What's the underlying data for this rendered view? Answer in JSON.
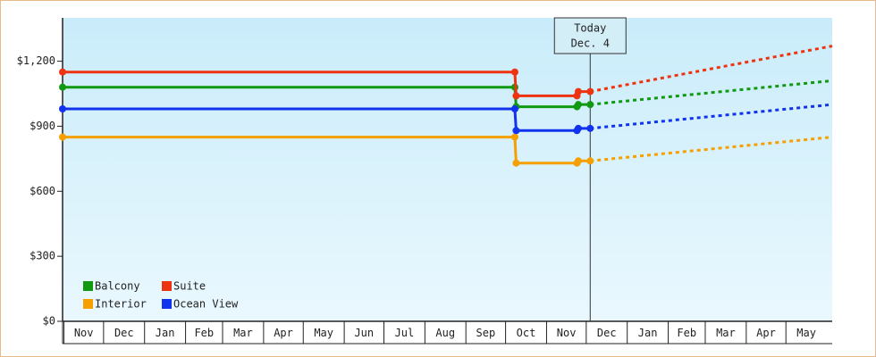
{
  "chart_data": {
    "type": "line",
    "title": "",
    "xlabel": "",
    "ylabel": "",
    "ylim": [
      0,
      1400
    ],
    "y_ticks": [
      {
        "value": 0,
        "label": "$0"
      },
      {
        "value": 300,
        "label": "$300"
      },
      {
        "value": 600,
        "label": "$600"
      },
      {
        "value": 900,
        "label": "$900"
      },
      {
        "value": 1200,
        "label": "$1,200"
      }
    ],
    "x_domain": [
      "2021-10-31",
      "2022-06-05"
    ],
    "months": [
      {
        "label": "Nov",
        "start": "2020-11-01",
        "end": "2020-12-01"
      },
      {
        "label": "Dec",
        "start": "2020-12-01",
        "end": "2021-01-01"
      },
      {
        "label": "Jan",
        "start": "2021-01-01",
        "end": "2021-02-01"
      },
      {
        "label": "Feb",
        "start": "2021-02-01",
        "end": "2021-03-01"
      },
      {
        "label": "Mar",
        "start": "2021-03-01",
        "end": "2021-04-01"
      },
      {
        "label": "Apr",
        "start": "2021-04-01",
        "end": "2021-05-01"
      },
      {
        "label": "May",
        "start": "2021-05-01",
        "end": "2021-06-01"
      },
      {
        "label": "Jun",
        "start": "2021-06-01",
        "end": "2021-07-01"
      },
      {
        "label": "Jul",
        "start": "2021-07-01",
        "end": "2021-08-01"
      },
      {
        "label": "Aug",
        "start": "2021-08-01",
        "end": "2021-09-01"
      },
      {
        "label": "Sep",
        "start": "2021-09-01",
        "end": "2021-10-01"
      },
      {
        "label": "Oct",
        "start": "2021-10-01",
        "end": "2021-11-01"
      },
      {
        "label": "Nov",
        "start": "2021-11-01",
        "end": "2021-12-01"
      },
      {
        "label": "Dec",
        "start": "2021-12-01",
        "end": "2022-01-01"
      },
      {
        "label": "Jan",
        "start": "2022-01-01",
        "end": "2022-02-01"
      },
      {
        "label": "Feb",
        "start": "2022-02-01",
        "end": "2022-03-01"
      },
      {
        "label": "Mar",
        "start": "2022-03-01",
        "end": "2022-04-01"
      },
      {
        "label": "Apr",
        "start": "2022-04-01",
        "end": "2022-05-01"
      },
      {
        "label": "May",
        "start": "2022-05-01",
        "end": "2022-06-01"
      }
    ],
    "today": {
      "line1": "Today",
      "line2": "Dec. 4",
      "date": "2021-12-04"
    },
    "legend": {
      "placement": "bottom-left"
    },
    "series": [
      {
        "name": "Balcony",
        "color": "#119911",
        "points": [
          {
            "date": "2020-10-31",
            "value": 1080
          },
          {
            "date": "2021-10-08",
            "value": 1080
          },
          {
            "date": "2021-10-09",
            "value": 990
          },
          {
            "date": "2021-11-24",
            "value": 990
          },
          {
            "date": "2021-11-25",
            "value": 1000
          },
          {
            "date": "2021-12-04",
            "value": 1000
          }
        ],
        "forecast": [
          {
            "date": "2021-12-04",
            "value": 1000
          },
          {
            "date": "2022-06-05",
            "value": 1110
          }
        ]
      },
      {
        "name": "Suite",
        "color": "#ee3311",
        "points": [
          {
            "date": "2020-10-31",
            "value": 1150
          },
          {
            "date": "2021-10-08",
            "value": 1150
          },
          {
            "date": "2021-10-09",
            "value": 1040
          },
          {
            "date": "2021-11-24",
            "value": 1040
          },
          {
            "date": "2021-11-25",
            "value": 1060
          },
          {
            "date": "2021-12-04",
            "value": 1060
          }
        ],
        "forecast": [
          {
            "date": "2021-12-04",
            "value": 1060
          },
          {
            "date": "2022-06-05",
            "value": 1270
          }
        ]
      },
      {
        "name": "Interior",
        "color": "#f5a000",
        "points": [
          {
            "date": "2020-10-31",
            "value": 850
          },
          {
            "date": "2021-10-08",
            "value": 850
          },
          {
            "date": "2021-10-09",
            "value": 730
          },
          {
            "date": "2021-11-24",
            "value": 730
          },
          {
            "date": "2021-11-25",
            "value": 740
          },
          {
            "date": "2021-12-04",
            "value": 740
          }
        ],
        "forecast": [
          {
            "date": "2021-12-04",
            "value": 740
          },
          {
            "date": "2022-06-05",
            "value": 850
          }
        ]
      },
      {
        "name": "Ocean View",
        "color": "#1133ee",
        "points": [
          {
            "date": "2020-10-31",
            "value": 980
          },
          {
            "date": "2021-10-08",
            "value": 980
          },
          {
            "date": "2021-10-09",
            "value": 880
          },
          {
            "date": "2021-11-24",
            "value": 880
          },
          {
            "date": "2021-11-25",
            "value": 890
          },
          {
            "date": "2021-12-04",
            "value": 890
          }
        ],
        "forecast": [
          {
            "date": "2021-12-04",
            "value": 890
          },
          {
            "date": "2022-06-05",
            "value": 1000
          }
        ]
      }
    ]
  }
}
